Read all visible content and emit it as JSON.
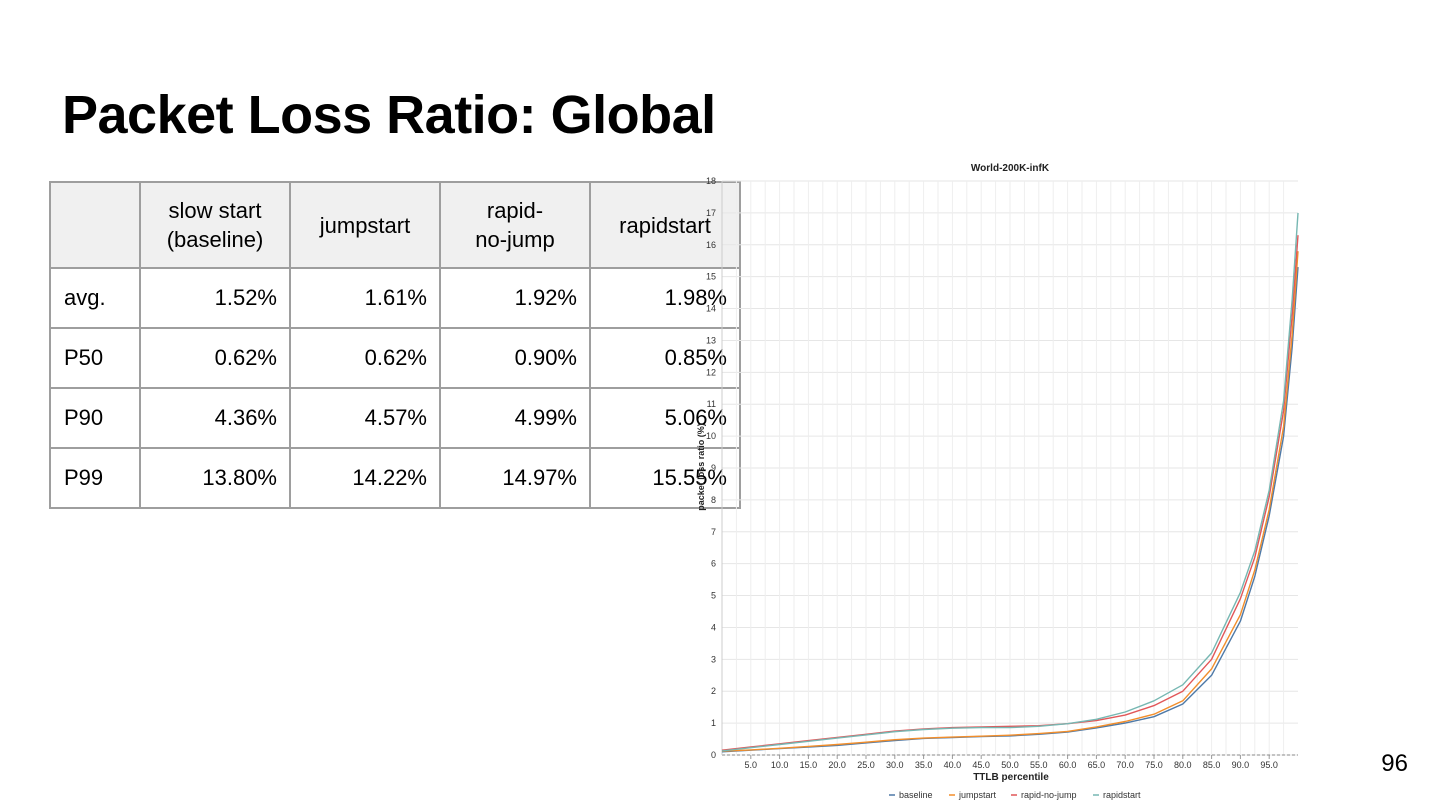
{
  "slide": {
    "title": "Packet Loss Ratio: Global",
    "page_number": "96"
  },
  "table": {
    "headers": [
      "",
      "slow start\n(baseline)",
      "jumpstart",
      "rapid-\nno-jump",
      "rapidstart"
    ],
    "rows": [
      [
        "avg.",
        "1.52%",
        "1.61%",
        "1.92%",
        "1.98%"
      ],
      [
        "P50",
        "0.62%",
        "0.62%",
        "0.90%",
        "0.85%"
      ],
      [
        "P90",
        "4.36%",
        "4.57%",
        "4.99%",
        "5.06%"
      ],
      [
        "P99",
        "13.80%",
        "14.22%",
        "14.97%",
        "15.55%"
      ]
    ]
  },
  "chart_data": {
    "type": "line",
    "title": "World-200K-infK",
    "xlabel": "TTLB percentile",
    "ylabel": "packet loss ratio (%)",
    "xlim": [
      0,
      100
    ],
    "ylim": [
      0,
      18
    ],
    "x_ticks": [
      "5.0",
      "10.0",
      "15.0",
      "20.0",
      "25.0",
      "30.0",
      "35.0",
      "40.0",
      "45.0",
      "50.0",
      "55.0",
      "60.0",
      "65.0",
      "70.0",
      "75.0",
      "80.0",
      "85.0",
      "90.0",
      "95.0"
    ],
    "y_ticks": [
      "0",
      "1",
      "2",
      "3",
      "4",
      "5",
      "6",
      "7",
      "8",
      "9",
      "10",
      "11",
      "12",
      "13",
      "14",
      "15",
      "16",
      "17",
      "18"
    ],
    "grid": true,
    "legend_position": "bottom",
    "x": [
      0,
      5,
      10,
      15,
      20,
      25,
      30,
      35,
      40,
      45,
      50,
      55,
      60,
      65,
      70,
      75,
      80,
      85,
      90,
      92.5,
      95,
      97.5,
      99,
      100
    ],
    "series": [
      {
        "name": "baseline",
        "color": "#4e79a7",
        "values": [
          0.1,
          0.15,
          0.2,
          0.25,
          0.3,
          0.38,
          0.45,
          0.52,
          0.55,
          0.58,
          0.6,
          0.65,
          0.72,
          0.85,
          1.0,
          1.2,
          1.6,
          2.5,
          4.2,
          5.6,
          7.5,
          10.0,
          12.8,
          15.3
        ]
      },
      {
        "name": "jumpstart",
        "color": "#f28e2b",
        "values": [
          0.12,
          0.16,
          0.21,
          0.27,
          0.33,
          0.4,
          0.48,
          0.53,
          0.56,
          0.59,
          0.62,
          0.67,
          0.74,
          0.88,
          1.05,
          1.28,
          1.7,
          2.7,
          4.4,
          5.8,
          7.7,
          10.3,
          13.2,
          15.8
        ]
      },
      {
        "name": "rapid-no-jump",
        "color": "#e15759",
        "values": [
          0.15,
          0.25,
          0.35,
          0.45,
          0.55,
          0.65,
          0.75,
          0.82,
          0.86,
          0.88,
          0.9,
          0.92,
          0.98,
          1.08,
          1.25,
          1.55,
          2.0,
          3.0,
          4.9,
          6.2,
          8.1,
          10.8,
          13.8,
          16.3
        ]
      },
      {
        "name": "rapidstart",
        "color": "#76b7b2",
        "values": [
          0.13,
          0.23,
          0.33,
          0.43,
          0.53,
          0.63,
          0.73,
          0.8,
          0.84,
          0.86,
          0.86,
          0.9,
          0.98,
          1.12,
          1.35,
          1.7,
          2.2,
          3.2,
          5.1,
          6.4,
          8.3,
          11.1,
          14.3,
          17.0
        ]
      }
    ]
  }
}
